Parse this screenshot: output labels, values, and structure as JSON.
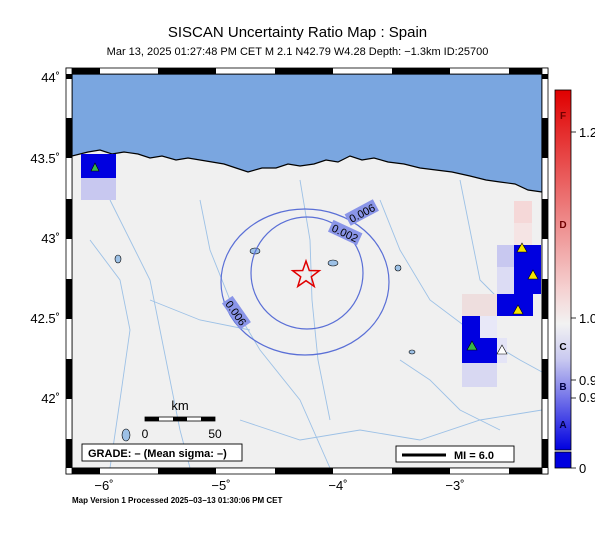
{
  "title": "SISCAN Uncertainty Ratio Map : Spain",
  "subtitle": "Mar 13, 2025 01:27:48 PM CET   M 2.1    N42.79 W4.28   Depth: −1.3km   ID:25700",
  "footer": "Map Version 1 Processed 2025−03−13 01:30:06 PM CET",
  "lat_ticks": [
    "44˚",
    "43.5˚",
    "43˚",
    "42.5˚",
    "42˚"
  ],
  "lon_ticks": [
    "−6˚",
    "−5˚",
    "−4˚",
    "−3˚"
  ],
  "contour_labels": [
    "0.006",
    "0.002",
    "0.006"
  ],
  "scale_bar": {
    "unit": "km",
    "start": "0",
    "end": "50"
  },
  "grade_box": "GRADE: – (Mean sigma: –)",
  "mi_legend": "MI = 6.0",
  "colorbar": {
    "letters": [
      "F",
      "D",
      "C",
      "B",
      "A"
    ],
    "ticks": [
      "1.2",
      "1.0",
      "0.9",
      "0.9",
      "0"
    ],
    "colors": {
      "top": "#e00000",
      "mid": "#f2f2f2",
      "bottom": "#0000e0"
    }
  },
  "colors": {
    "sea": "#7aa6e0",
    "land": "#f0f0f0",
    "river": "#9dc1e6",
    "contour": "#5a6fd6"
  }
}
